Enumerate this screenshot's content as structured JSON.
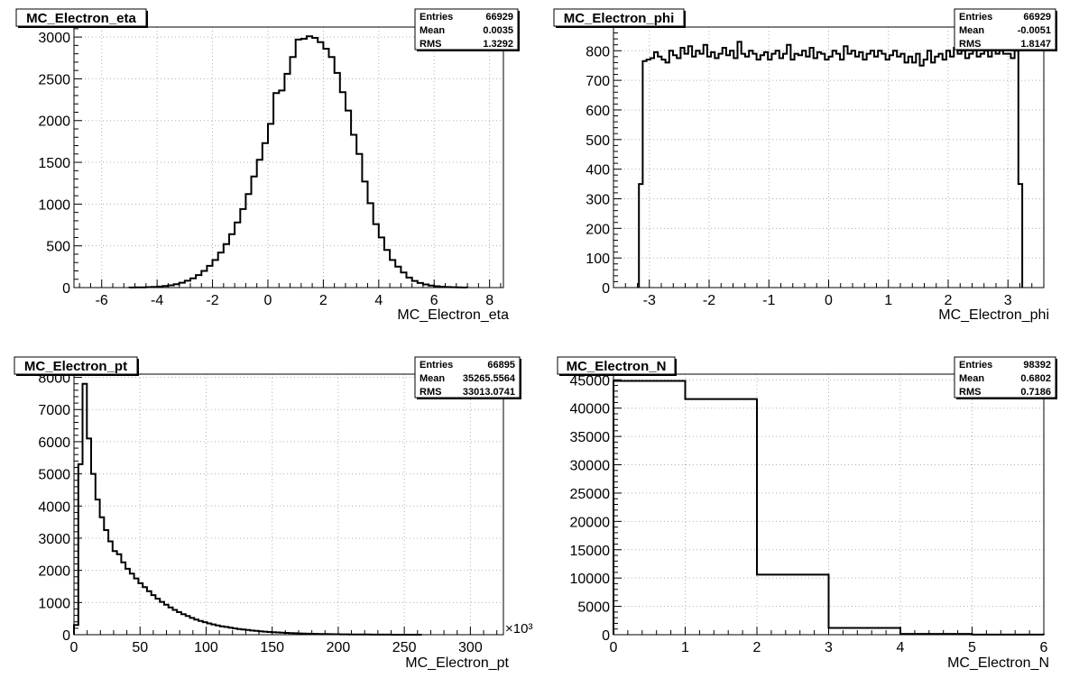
{
  "chart_data": [
    {
      "type": "histogram",
      "title": "MC_Electron_eta",
      "xlabel": "MC_Electron_eta",
      "xlim": [
        -7,
        8.5
      ],
      "ylim": [
        0,
        3120
      ],
      "xticks": [
        -6,
        -4,
        -2,
        0,
        2,
        4,
        6,
        8
      ],
      "yticks": [
        0,
        500,
        1000,
        1500,
        2000,
        2500,
        3000
      ],
      "grid": true,
      "bin_width": 0.2,
      "bin_start": -5.0,
      "values": [
        1,
        2,
        3,
        5,
        8,
        12,
        18,
        27,
        40,
        58,
        82,
        110,
        150,
        200,
        260,
        330,
        420,
        520,
        640,
        780,
        940,
        1120,
        1330,
        1530,
        1730,
        1960,
        2330,
        2360,
        2560,
        2760,
        2970,
        2980,
        3010,
        2990,
        2940,
        2860,
        2760,
        2570,
        2340,
        2120,
        1830,
        1600,
        1270,
        1010,
        760,
        600,
        450,
        330,
        250,
        180,
        120,
        80,
        55,
        38,
        25,
        16,
        10,
        6,
        4,
        2,
        1
      ],
      "stats": [
        {
          "label": "Entries",
          "value": "66929"
        },
        {
          "label": "Mean",
          "value": "0.0035"
        },
        {
          "label": "RMS",
          "value": "1.3292"
        }
      ]
    },
    {
      "type": "histogram",
      "title": "MC_Electron_phi",
      "xlabel": "MC_Electron_phi",
      "xlim": [
        -3.6,
        3.6
      ],
      "ylim": [
        0,
        880
      ],
      "xticks": [
        -3,
        -2,
        -1,
        0,
        1,
        2,
        3
      ],
      "yticks": [
        0,
        100,
        200,
        300,
        400,
        500,
        600,
        700,
        800
      ],
      "grid": true,
      "bin_width": 0.0635,
      "bin_start": -3.175,
      "values": [
        350,
        765,
        770,
        775,
        795,
        780,
        770,
        760,
        800,
        785,
        775,
        810,
        790,
        815,
        780,
        800,
        790,
        820,
        780,
        795,
        775,
        790,
        810,
        785,
        800,
        775,
        830,
        790,
        780,
        800,
        790,
        770,
        785,
        795,
        770,
        790,
        800,
        775,
        790,
        820,
        770,
        790,
        785,
        800,
        780,
        810,
        775,
        795,
        790,
        770,
        780,
        800,
        790,
        770,
        815,
        790,
        800,
        780,
        795,
        770,
        790,
        800,
        780,
        800,
        790,
        770,
        785,
        800,
        780,
        790,
        760,
        780,
        760,
        790,
        750,
        770,
        800,
        760,
        780,
        790,
        770,
        800,
        780,
        810,
        790,
        800,
        775,
        790,
        810,
        780,
        790,
        800,
        780,
        815,
        790,
        800,
        790,
        790,
        775,
        800,
        350
      ],
      "stats": [
        {
          "label": "Entries",
          "value": "66929"
        },
        {
          "label": "Mean",
          "value": "-0.0051"
        },
        {
          "label": "RMS",
          "value": "1.8147"
        }
      ]
    },
    {
      "type": "histogram",
      "title": "MC_Electron_pt",
      "xlabel": "MC_Electron_pt",
      "x_multiplier": "×10³",
      "xlim": [
        0,
        325
      ],
      "ylim": [
        0,
        8100
      ],
      "xticks": [
        0,
        50,
        100,
        150,
        200,
        250,
        300
      ],
      "yticks": [
        0,
        1000,
        2000,
        3000,
        4000,
        5000,
        6000,
        7000,
        8000
      ],
      "grid": true,
      "bin_width": 3.25,
      "bin_start": 0,
      "values": [
        300,
        5300,
        7800,
        6100,
        5000,
        4200,
        3650,
        3250,
        2900,
        2600,
        2500,
        2250,
        2050,
        1900,
        1750,
        1600,
        1480,
        1350,
        1230,
        1120,
        1020,
        930,
        850,
        770,
        700,
        640,
        580,
        520,
        470,
        430,
        390,
        350,
        320,
        290,
        260,
        240,
        215,
        195,
        175,
        160,
        145,
        130,
        118,
        105,
        95,
        85,
        78,
        70,
        62,
        56,
        50,
        45,
        40,
        36,
        32,
        28,
        25,
        22,
        20,
        17,
        15,
        13,
        11,
        10,
        9,
        8,
        7,
        6,
        5,
        4,
        3,
        3,
        2,
        2,
        1,
        1,
        1,
        1,
        0,
        0,
        0
      ],
      "stats": [
        {
          "label": "Entries",
          "value": "66895"
        },
        {
          "label": "Mean",
          "value": "35265.5564"
        },
        {
          "label": "RMS",
          "value": "33013.0741"
        }
      ]
    },
    {
      "type": "histogram",
      "title": "MC_Electron_N",
      "xlabel": "MC_Electron_N",
      "xlim": [
        0,
        6
      ],
      "ylim": [
        0,
        46000
      ],
      "xticks": [
        0,
        1,
        2,
        3,
        4,
        5,
        6
      ],
      "yticks": [
        0,
        5000,
        10000,
        15000,
        20000,
        25000,
        30000,
        35000,
        40000,
        45000
      ],
      "grid": true,
      "bin_width": 1,
      "bin_start": 0,
      "values": [
        44800,
        41600,
        10600,
        1200,
        150,
        10
      ],
      "stats": [
        {
          "label": "Entries",
          "value": "98392"
        },
        {
          "label": "Mean",
          "value": "0.6802"
        },
        {
          "label": "RMS",
          "value": "0.7186"
        }
      ]
    }
  ]
}
